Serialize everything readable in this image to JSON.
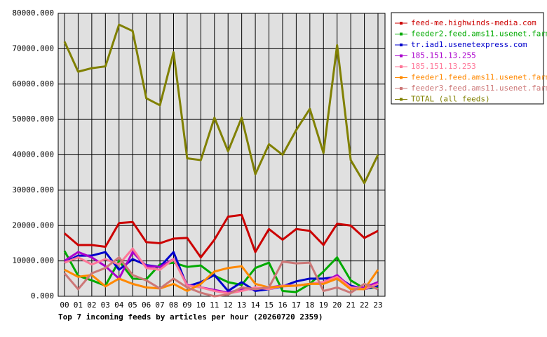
{
  "chart_data": {
    "type": "line",
    "title": "Top 7 incoming feeds by articles per hour (20260720 2359)",
    "categories": [
      "00",
      "01",
      "02",
      "03",
      "04",
      "05",
      "06",
      "07",
      "08",
      "09",
      "10",
      "11",
      "12",
      "13",
      "14",
      "15",
      "16",
      "17",
      "18",
      "19",
      "20",
      "21",
      "22",
      "23"
    ],
    "ylim": [
      0,
      80000
    ],
    "yticks": [
      {
        "value": 0,
        "label": "0.000"
      },
      {
        "value": 10000,
        "label": "10000.000"
      },
      {
        "value": 20000,
        "label": "20000.000"
      },
      {
        "value": 30000,
        "label": "30000.000"
      },
      {
        "value": 40000,
        "label": "40000.000"
      },
      {
        "value": 50000,
        "label": "50000.000"
      },
      {
        "value": 60000,
        "label": "60000.000"
      },
      {
        "value": 70000,
        "label": "70000.000"
      },
      {
        "value": 80000,
        "label": "80000.000"
      }
    ],
    "grid": true,
    "legend": "right",
    "series": [
      {
        "name": "feed-me.highwinds-media.com",
        "color": "#cc0000",
        "values": [
          17800,
          14500,
          14500,
          14000,
          20700,
          21000,
          15300,
          15000,
          16300,
          16500,
          11000,
          16000,
          22500,
          23000,
          12500,
          19000,
          16000,
          19000,
          18500,
          14500,
          20500,
          20000,
          16500,
          18500
        ]
      },
      {
        "name": "feeder2.feed.ams11.usenet.farm",
        "color": "#00aa00",
        "values": [
          12800,
          5800,
          4500,
          3000,
          10000,
          5000,
          4800,
          9000,
          9500,
          8300,
          8700,
          5800,
          4000,
          3200,
          8000,
          9500,
          1500,
          1200,
          3500,
          7000,
          11000,
          4500,
          2200,
          2500
        ]
      },
      {
        "name": "tr.iad1.usenetexpress.com",
        "color": "#0000cc",
        "values": [
          9500,
          11500,
          11500,
          12500,
          7500,
          10500,
          8800,
          8300,
          12500,
          2800,
          4000,
          6000,
          1500,
          4000,
          1500,
          2000,
          2800,
          4200,
          5000,
          5000,
          5500,
          3000,
          2000,
          3000
        ]
      },
      {
        "name": "185.151.13.255",
        "color": "#aa00cc",
        "values": [
          10000,
          12500,
          11000,
          8500,
          5000,
          12500,
          8500,
          8300,
          10500,
          3200,
          2500,
          1800,
          1000,
          2000,
          2000,
          2500,
          3000,
          3000,
          3500,
          4000,
          6000,
          2500,
          2500,
          4000
        ]
      },
      {
        "name": "185.151.13.253",
        "color": "#ff7799",
        "values": [
          9500,
          11000,
          9000,
          10500,
          9000,
          13500,
          8000,
          7500,
          10500,
          3000,
          2500,
          1500,
          800,
          1500,
          2500,
          2000,
          3000,
          3000,
          3500,
          4000,
          5500,
          2500,
          2000,
          3500
        ]
      },
      {
        "name": "feeder1.feed.ams11.usenet.farm",
        "color": "#ff8800",
        "values": [
          7500,
          5500,
          6000,
          2800,
          5000,
          3500,
          2500,
          2200,
          3500,
          1500,
          3500,
          7000,
          8000,
          8500,
          3500,
          2500,
          2800,
          3000,
          3500,
          3500,
          5000,
          2000,
          2000,
          7500
        ]
      },
      {
        "name": "feeder3.feed.ams11.usenet.farm",
        "color": "#cc7777",
        "values": [
          6500,
          2000,
          6500,
          8000,
          11000,
          6000,
          4500,
          2200,
          5000,
          2500,
          1000,
          0,
          500,
          2500,
          2000,
          2500,
          9800,
          9300,
          9500,
          1500,
          2500,
          1000,
          3500,
          2000
        ]
      },
      {
        "name": "TOTAL (all feeds)",
        "color": "#808000",
        "values": [
          72000,
          63500,
          64500,
          65000,
          76800,
          75000,
          56000,
          54000,
          69000,
          39000,
          38500,
          50500,
          41000,
          50500,
          34500,
          43000,
          40000,
          47000,
          53000,
          40500,
          71000,
          38500,
          32000,
          40000
        ]
      }
    ]
  }
}
